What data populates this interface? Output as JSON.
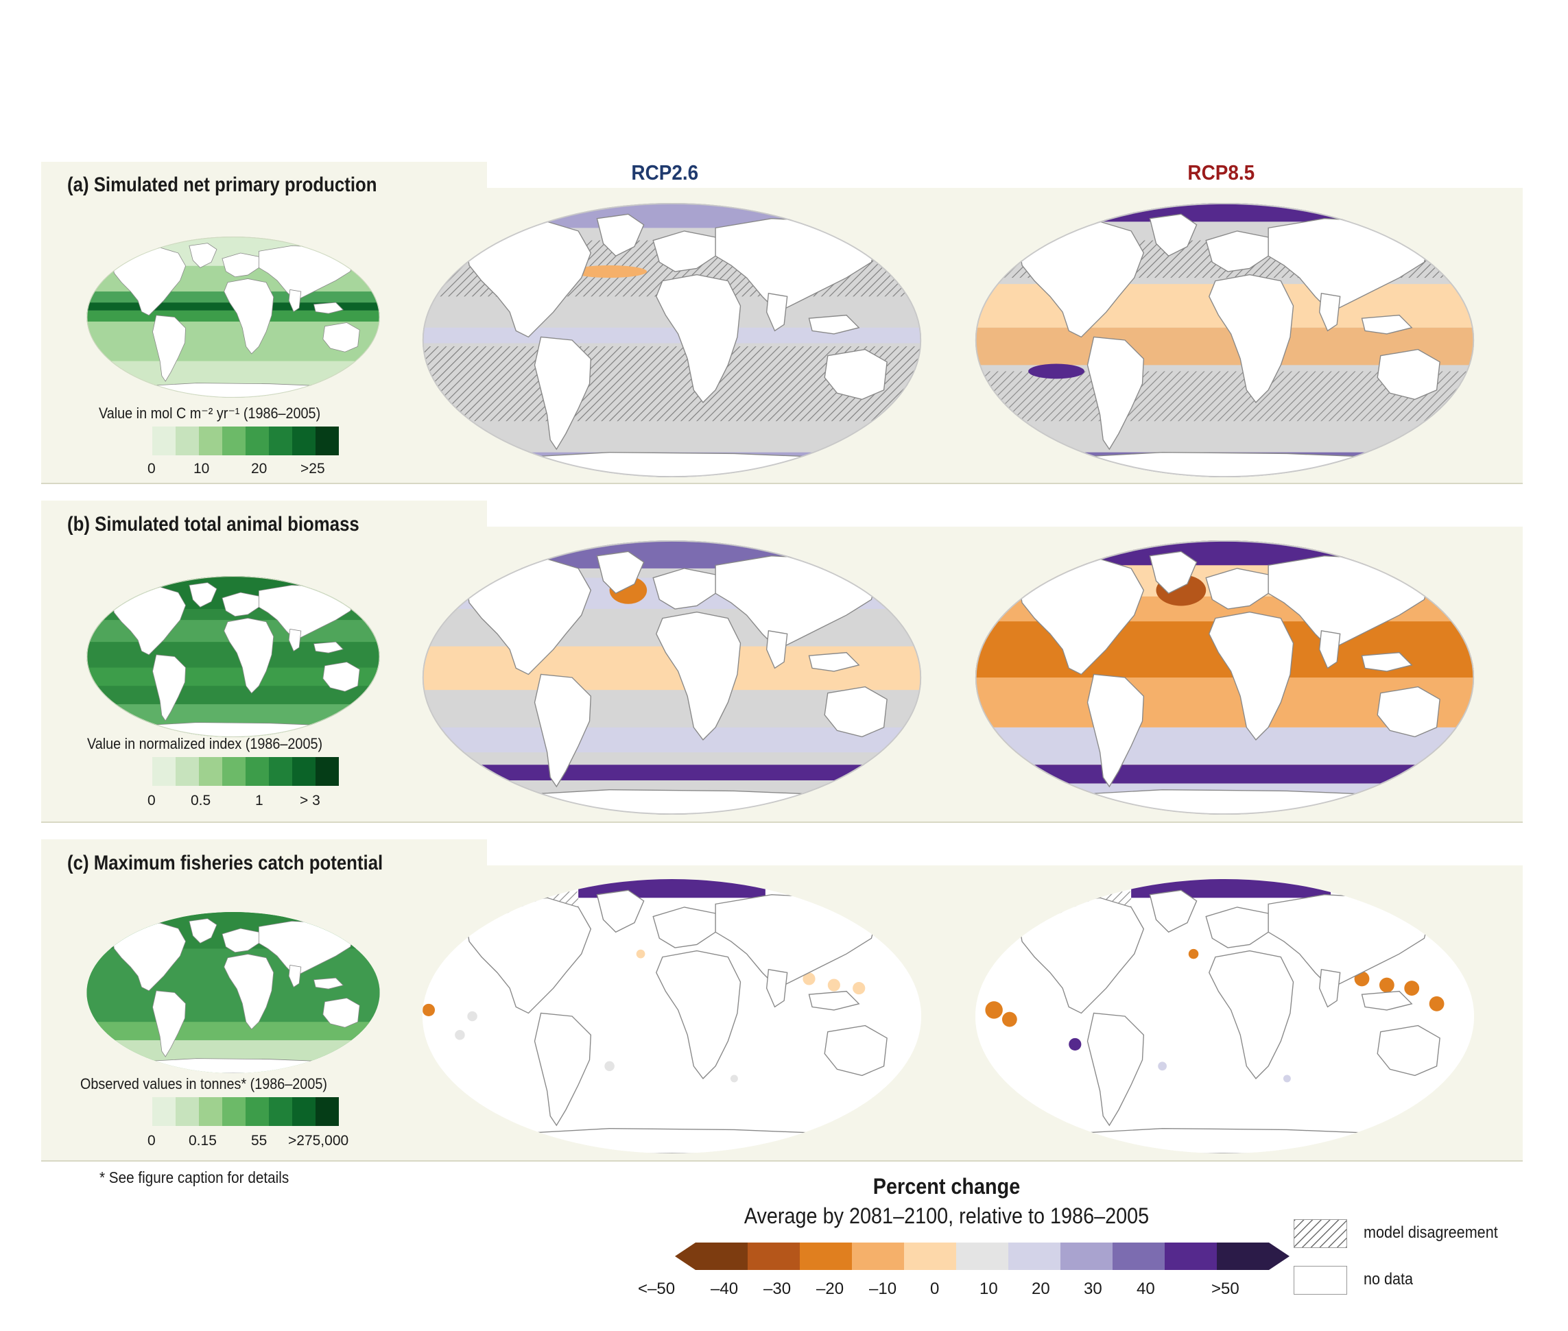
{
  "columns": {
    "rcp26": {
      "label": "RCP2.6",
      "color": "#1f3a6e"
    },
    "rcp85": {
      "label": "RCP8.5",
      "color": "#9b1b1b"
    }
  },
  "panels": [
    {
      "title": "(a) Simulated net primary production",
      "legend_label": "Value in  mol C m⁻² yr⁻¹ (1986–2005)",
      "ticks": [
        "0",
        "10",
        "20",
        ">25"
      ]
    },
    {
      "title": "(b) Simulated total animal biomass",
      "legend_label": "Value in normalized index (1986–2005)",
      "ticks": [
        "0",
        "0.5",
        "1",
        "> 3"
      ]
    },
    {
      "title": "(c) Maximum fisheries catch potential",
      "legend_label": "Observed values in tonnes* (1986–2005)",
      "ticks": [
        "0",
        "0.15",
        "55",
        ">275,000"
      ]
    }
  ],
  "footnote": "* See figure caption for details",
  "green_scale": [
    "#e3f0dc",
    "#c7e3bd",
    "#9fd18f",
    "#6cba68",
    "#3d9d4a",
    "#1f8139",
    "#0b6328",
    "#053d17"
  ],
  "percent_change": {
    "title": "Percent change",
    "subtitle": "Average by 2081–2100, relative to 1986–2005",
    "ticks": [
      "<–50",
      "–40",
      "–30",
      "–20",
      "–10",
      "0",
      "10",
      "20",
      "30",
      "40",
      ">50"
    ],
    "colors": [
      "#7d3c10",
      "#b5561a",
      "#e07f1f",
      "#f5b06a",
      "#fdd8aa",
      "#e4e4e4",
      "#d3d3e8",
      "#a9a3cf",
      "#7c6cb0",
      "#55298d",
      "#2b1b48"
    ],
    "arrow_left_color": "#7d3c10",
    "arrow_right_color": "#2b1b48"
  },
  "key": {
    "hatched": "model disagreement",
    "empty": "no data"
  }
}
